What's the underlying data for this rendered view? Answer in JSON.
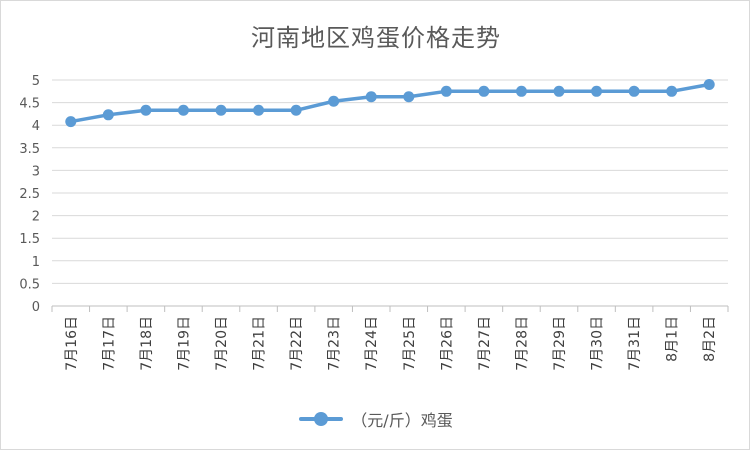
{
  "chart_data": {
    "type": "line",
    "title": "河南地区鸡蛋价格走势",
    "categories": [
      "7月16日",
      "7月17日",
      "7月18日",
      "7月19日",
      "7月20日",
      "7月21日",
      "7月22日",
      "7月23日",
      "7月24日",
      "7月25日",
      "7月26日",
      "7月27日",
      "7月28日",
      "7月29日",
      "7月30日",
      "7月31日",
      "8月1日",
      "8月2日"
    ],
    "series": [
      {
        "name": "（元/斤）鸡蛋",
        "color": "#5b9bd5",
        "values": [
          4.08,
          4.23,
          4.33,
          4.33,
          4.33,
          4.33,
          4.33,
          4.53,
          4.63,
          4.63,
          4.75,
          4.75,
          4.75,
          4.75,
          4.75,
          4.75,
          4.75,
          4.9
        ]
      }
    ],
    "yticks": [
      "0",
      "0.5",
      "1",
      "1.5",
      "2",
      "2.5",
      "3",
      "3.5",
      "4",
      "4.5",
      "5"
    ],
    "ylim": [
      0,
      5
    ],
    "xlabel": "",
    "ylabel": "",
    "grid": true,
    "legend": "bottom"
  }
}
